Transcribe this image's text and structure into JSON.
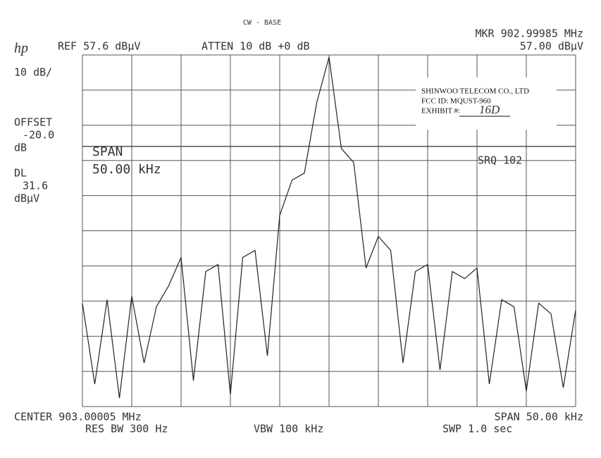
{
  "chart_data": {
    "type": "line",
    "title": "CW - BASE",
    "logo": "hp",
    "marker_freq": "MKR 902.99985 MHz",
    "marker_level": "57.00 dBµV",
    "ref": "REF 57.6 dBµV",
    "atten": "ATTEN 10 dB +0 dB",
    "scale": "10 dB/",
    "offset_label": "OFFSET",
    "offset_value": "-20.0",
    "offset_unit": "dB",
    "dl_label": "DL",
    "display_line": 31.6,
    "dl_unit": "dBµV",
    "span_label": "SPAN",
    "span_value": "50.00 kHz",
    "srq": "SRQ 102",
    "center": "CENTER 903.00005 MHz",
    "span": "SPAN 50.00 kHz",
    "res_bw": "RES BW 300 Hz",
    "vbw": "VBW 100 kHz",
    "sweep": "SWP 1.0  sec",
    "stamp": {
      "company": "SHINWOO TELECOM CO., LTD",
      "fcc_id": "FCC ID: MQUST-960",
      "exhibit": "EXHIBIT #:",
      "exhibit_no": "16D"
    },
    "xlim": [
      902.97505,
      903.02505
    ],
    "xticks": [
      902.97505,
      902.98005,
      902.98505,
      902.99005,
      902.99505,
      903.00005,
      903.00505,
      903.01005,
      903.01505,
      903.02005,
      903.02505
    ],
    "ylim": [
      -42.4,
      57.6
    ],
    "yticks": [
      -42.4,
      -32.4,
      -22.4,
      -12.4,
      -2.4,
      7.6,
      17.6,
      27.6,
      37.6,
      47.6,
      57.6
    ],
    "grid": true,
    "x": [
      902.97505,
      902.9763,
      902.97755,
      902.9788,
      902.98005,
      902.9813,
      902.98255,
      902.9838,
      902.98505,
      902.9863,
      902.98755,
      902.9888,
      902.99005,
      902.9913,
      902.99255,
      902.9938,
      902.99505,
      902.9963,
      902.99755,
      902.9988,
      903.00005,
      903.0013,
      903.00255,
      903.0038,
      903.00505,
      903.0063,
      903.00755,
      903.0088,
      903.01005,
      903.0113,
      903.01255,
      903.0138,
      903.01505,
      903.0163,
      903.01755,
      903.0188,
      903.02005,
      903.0213,
      903.02255,
      903.0238,
      903.02505
    ],
    "series": [
      {
        "color": "#222222",
        "values": [
          -13,
          -36,
          -12,
          -40,
          -11,
          -30,
          -14,
          -8,
          0,
          -35,
          -4,
          -2,
          -39,
          0,
          2,
          -28,
          12,
          22,
          24,
          44,
          57,
          31,
          27,
          -3,
          6,
          2,
          -30,
          -4,
          -2,
          -32,
          -4,
          -6,
          -3,
          -36,
          -12,
          -14,
          -38,
          -13,
          -16,
          -37,
          -15
        ]
      }
    ]
  }
}
